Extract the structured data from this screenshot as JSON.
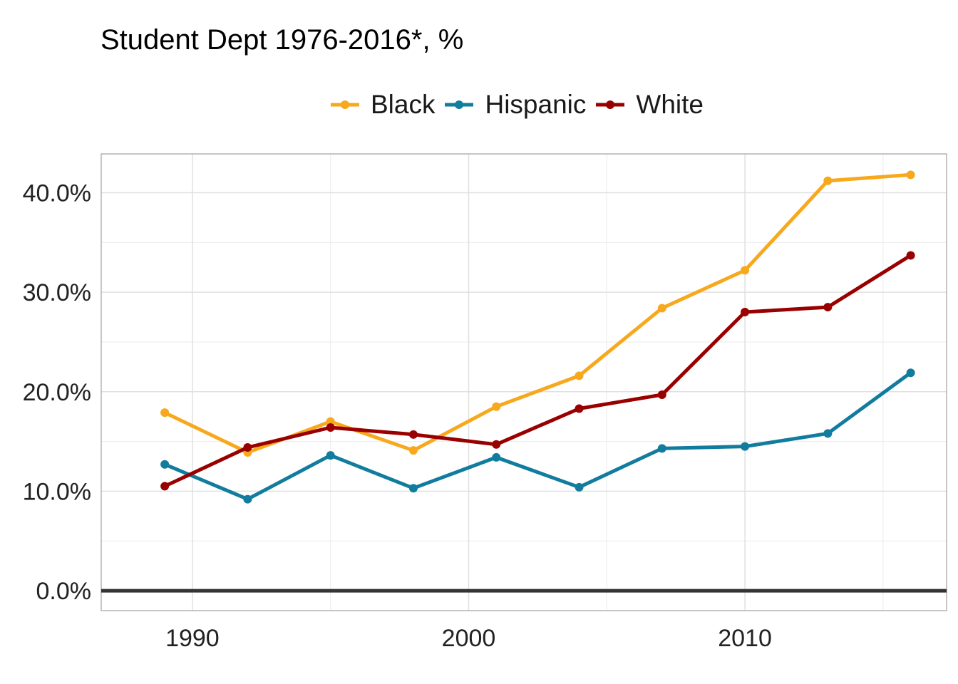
{
  "chart_data": {
    "type": "line",
    "title": "Student Dept 1976-2016*, %",
    "xlabel": "",
    "ylabel": "",
    "x": [
      1989,
      1992,
      1995,
      1998,
      2001,
      2004,
      2007,
      2010,
      2013,
      2016
    ],
    "xlim": [
      1986.7,
      2017.3
    ],
    "ylim": [
      -2,
      43.9
    ],
    "xticks": [
      1990,
      2000,
      2010
    ],
    "xtick_labels": [
      "1990",
      "2000",
      "2010"
    ],
    "yticks": [
      0,
      10,
      20,
      30,
      40
    ],
    "ytick_labels": [
      "0.0%",
      "10.0%",
      "20.0%",
      "30.0%",
      "40.0%"
    ],
    "grid": true,
    "legend_position": "top",
    "series": [
      {
        "name": "Black",
        "color": "#F8A81C",
        "values": [
          17.9,
          13.9,
          17.0,
          14.1,
          18.5,
          21.6,
          28.4,
          32.2,
          41.2,
          41.8
        ]
      },
      {
        "name": "Hispanic",
        "color": "#127C9E",
        "values": [
          12.7,
          9.2,
          13.6,
          10.3,
          13.4,
          10.4,
          14.3,
          14.5,
          15.8,
          21.9
        ]
      },
      {
        "name": "White",
        "color": "#990000",
        "values": [
          10.5,
          14.4,
          16.4,
          15.7,
          14.7,
          18.3,
          19.7,
          28.0,
          28.5,
          33.7
        ]
      }
    ]
  }
}
